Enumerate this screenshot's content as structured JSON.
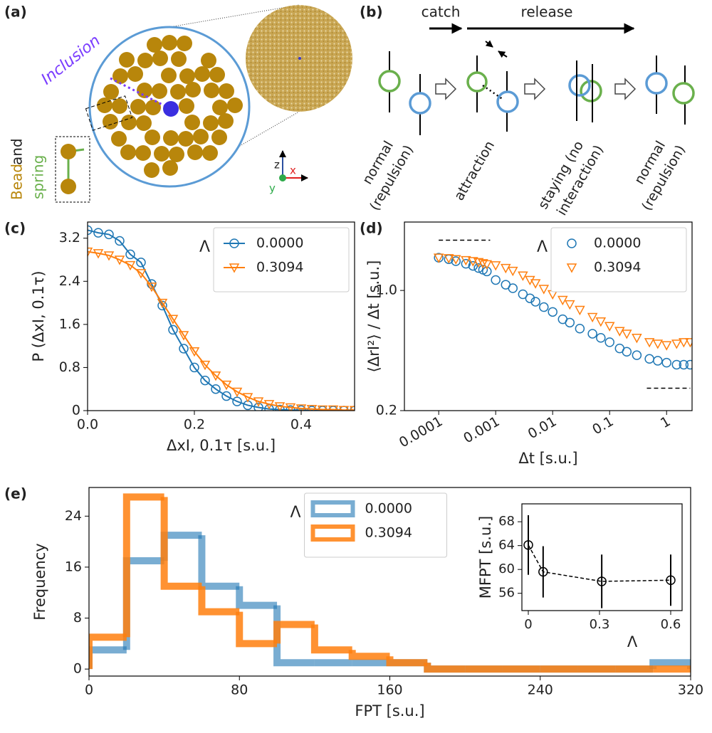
{
  "panel_labels": [
    "(a)",
    "(b)",
    "(c)",
    "(d)",
    "(e)"
  ],
  "diagram_a": {
    "inclusion": "Inclusion",
    "bead": "Bead",
    "and": "and",
    "spring": "spring",
    "axes": [
      "z",
      "x",
      "y"
    ]
  },
  "diagram_b": {
    "catch": "catch",
    "release": "release",
    "states": [
      [
        "normal",
        "(repulsion)"
      ],
      [
        "attraction"
      ],
      [
        "staying (no",
        "interaction)"
      ],
      [
        "normal",
        "(repulsion)"
      ]
    ]
  },
  "chart_data": [
    {
      "type": "line",
      "xlabel": "ΔxI, 0.1τ [s.u.]",
      "ylabel": "P (ΔxI, 0.1τ)",
      "x": [
        0,
        0.02,
        0.04,
        0.06,
        0.08,
        0.1,
        0.12,
        0.14,
        0.16,
        0.18,
        0.2,
        0.22,
        0.24,
        0.26,
        0.28,
        0.3,
        0.32,
        0.34,
        0.36,
        0.38,
        0.4,
        0.42,
        0.44,
        0.46,
        0.48,
        0.5
      ],
      "series": [
        {
          "name": "0.0000",
          "color": "#1f77b4",
          "marker": "circle",
          "values": [
            3.35,
            3.3,
            3.27,
            3.15,
            2.9,
            2.75,
            2.35,
            1.95,
            1.5,
            1.15,
            0.8,
            0.56,
            0.4,
            0.27,
            0.17,
            0.1,
            0.06,
            0.03,
            0.02,
            0.01,
            0.01,
            0,
            0,
            0,
            0,
            0
          ]
        },
        {
          "name": "0.3094",
          "color": "#ff7f0e",
          "marker": "triangle",
          "values": [
            2.95,
            2.92,
            2.88,
            2.8,
            2.7,
            2.55,
            2.3,
            2.0,
            1.7,
            1.4,
            1.1,
            0.85,
            0.65,
            0.48,
            0.35,
            0.25,
            0.17,
            0.12,
            0.08,
            0.06,
            0.04,
            0.03,
            0.02,
            0.02,
            0.01,
            0.01
          ]
        }
      ],
      "xlim": [
        0,
        0.5
      ],
      "ylim": [
        0,
        3.5
      ],
      "xticks": [
        {
          "value": 0,
          "label": "0.0"
        },
        0.2,
        0.4
      ],
      "yticks": [
        0,
        0.8,
        1.6,
        2.4,
        3.2
      ],
      "legend_title": "Λ",
      "legend": "upper right"
    },
    {
      "type": "scatter",
      "xscale": "log",
      "yscale": "log",
      "xlabel": "Δt [s.u.]",
      "ylabel": "⟨ΔrI²⟩ / Δt  [s.u.]",
      "x": [
        0.0001,
        0.00015,
        0.0002,
        0.0003,
        0.0004,
        0.0005,
        0.0006,
        0.0007,
        0.001,
        0.0015,
        0.002,
        0.003,
        0.004,
        0.005,
        0.007,
        0.01,
        0.015,
        0.02,
        0.03,
        0.05,
        0.07,
        0.1,
        0.15,
        0.2,
        0.3,
        0.5,
        0.7,
        1,
        1.5,
        2,
        2.6
      ],
      "series": [
        {
          "name": "0.0000",
          "color": "#1f77b4",
          "marker": "circle",
          "values": [
            1.55,
            1.52,
            1.48,
            1.43,
            1.39,
            1.35,
            1.32,
            1.29,
            1.15,
            1.08,
            1.03,
            0.95,
            0.9,
            0.86,
            0.8,
            0.75,
            0.68,
            0.65,
            0.6,
            0.56,
            0.53,
            0.5,
            0.46,
            0.44,
            0.42,
            0.4,
            0.39,
            0.38,
            0.37,
            0.37,
            0.37
          ]
        },
        {
          "name": "0.3094",
          "color": "#ff7f0e",
          "marker": "triangle",
          "values": [
            1.55,
            1.54,
            1.52,
            1.5,
            1.48,
            1.46,
            1.44,
            1.42,
            1.4,
            1.35,
            1.3,
            1.22,
            1.15,
            1.1,
            1.02,
            0.95,
            0.88,
            0.83,
            0.77,
            0.7,
            0.66,
            0.62,
            0.58,
            0.56,
            0.53,
            0.5,
            0.49,
            0.48,
            0.49,
            0.5,
            0.5
          ]
        }
      ],
      "reference_lines": [
        {
          "value": 1.96,
          "xrange": [
            0.0001,
            0.0008
          ]
        },
        {
          "value": 0.27,
          "xrange": [
            0.45,
            2.6
          ]
        }
      ],
      "xlim": [
        2.5e-05,
        2.8
      ],
      "ylim": [
        0.2,
        2.5
      ],
      "xticks": [
        0.0001,
        0.001,
        0.01,
        0.1,
        1
      ],
      "yticks": [
        0.2,
        {
          "value": 1,
          "label": "1.0"
        }
      ],
      "legend_title": "Λ",
      "legend": "upper right"
    },
    {
      "type": "histogram",
      "xlabel": "FPT [s.u.]",
      "ylabel": "Frequency",
      "bins": [
        0,
        20,
        40,
        60,
        80,
        100,
        120,
        140,
        160,
        180,
        200,
        220,
        240,
        260,
        280,
        300,
        320
      ],
      "series": [
        {
          "name": "0.0000",
          "color": "#1f77b4",
          "values": [
            3,
            17,
            21,
            13,
            10,
            1,
            1,
            1,
            1,
            0,
            0,
            0,
            0,
            0,
            0,
            1
          ]
        },
        {
          "name": "0.3094",
          "color": "#ff7f0e",
          "values": [
            5,
            27,
            13,
            9,
            4,
            7,
            3,
            2,
            1,
            0,
            0,
            0,
            0,
            0,
            0,
            0
          ]
        }
      ],
      "xlim": [
        0,
        320
      ],
      "ylim": [
        -1.1,
        28.5
      ],
      "xticks": [
        0,
        80,
        160,
        240,
        320
      ],
      "yticks": [
        0,
        8,
        16,
        24
      ],
      "legend_title": "Λ",
      "legend": "upper center"
    },
    {
      "type": "errorbar",
      "xlabel": "Λ",
      "ylabel": "MFPT [s.u.]",
      "x": [
        0,
        0.0625,
        0.3094,
        0.6
      ],
      "series": [
        {
          "color": "#000000",
          "marker": "circle",
          "values": [
            64.1,
            59.6,
            58.0,
            58.2
          ],
          "errors": [
            5,
            4.3,
            4.5,
            4.3
          ]
        }
      ],
      "xlim": [
        -0.027,
        0.648
      ],
      "ylim": [
        53.1,
        71
      ],
      "xticks": [
        0,
        0.3,
        0.6
      ],
      "yticks": [
        56,
        60,
        64,
        68
      ]
    }
  ]
}
